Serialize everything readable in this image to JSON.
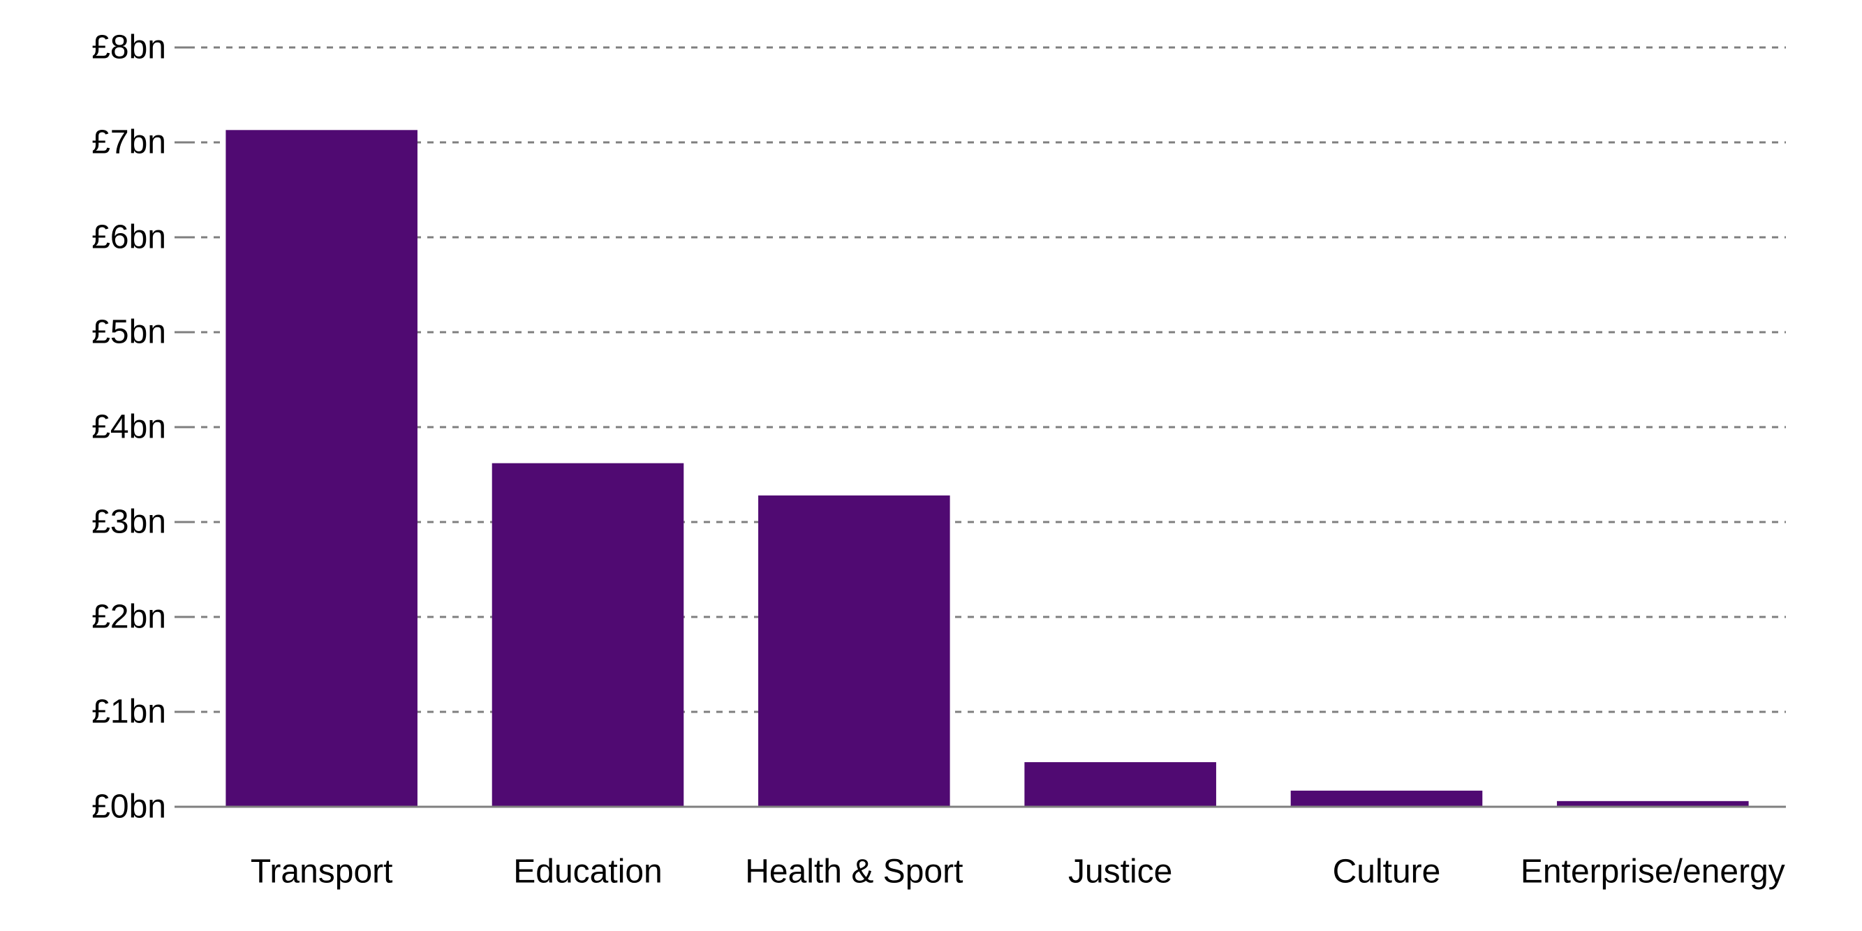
{
  "chart_data": {
    "type": "bar",
    "title": "",
    "xlabel": "",
    "ylabel": "",
    "categories": [
      "Transport",
      "Education",
      "Health & Sport",
      "Justice",
      "Culture",
      "Enterprise/energy"
    ],
    "values": [
      7.13,
      3.62,
      3.28,
      0.47,
      0.17,
      0.06
    ],
    "ylim": [
      0,
      8
    ],
    "y_ticks": [
      0,
      1,
      2,
      3,
      4,
      5,
      6,
      7,
      8
    ],
    "y_tick_labels": [
      "£0bn",
      "£1bn",
      "£2bn",
      "£3bn",
      "£4bn",
      "£5bn",
      "£6bn",
      "£7bn",
      "£8bn"
    ],
    "grid": true,
    "grid_style": "dashed",
    "legend": "none",
    "colors": {
      "bar": "#500a72",
      "grid": "#7f7f7f",
      "axis": "#7f7f7f",
      "text": "#000000"
    }
  }
}
